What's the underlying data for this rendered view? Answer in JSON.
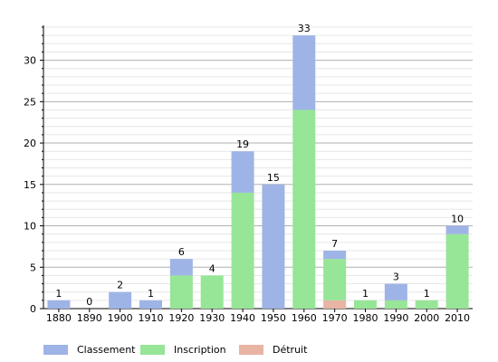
{
  "chart_data": {
    "type": "bar",
    "stacked": true,
    "categories": [
      "1880",
      "1890",
      "1900",
      "1910",
      "1920",
      "1930",
      "1940",
      "1950",
      "1960",
      "1970",
      "1980",
      "1990",
      "2000",
      "2010"
    ],
    "totals": [
      1,
      0,
      2,
      1,
      6,
      4,
      19,
      15,
      33,
      7,
      1,
      3,
      1,
      10
    ],
    "series": [
      {
        "name": "Détruit",
        "color": "#e8b4a4",
        "values": [
          0,
          0,
          0,
          0,
          0,
          0,
          0,
          0,
          0,
          1,
          0,
          0,
          0,
          0
        ]
      },
      {
        "name": "Inscription",
        "color": "#97e597",
        "values": [
          0,
          0,
          0,
          0,
          4,
          4,
          14,
          0,
          24,
          5,
          1,
          1,
          1,
          9
        ]
      },
      {
        "name": "Classement",
        "color": "#9fb4e6",
        "values": [
          1,
          0,
          2,
          1,
          2,
          0,
          5,
          15,
          9,
          1,
          0,
          2,
          0,
          1
        ]
      }
    ],
    "ylim": [
      0,
      34
    ],
    "yticks": [
      0,
      5,
      10,
      15,
      20,
      25,
      30
    ],
    "grid": true,
    "legend_position": "bottom",
    "legend_order": [
      "Classement",
      "Inscription",
      "Détruit"
    ]
  }
}
